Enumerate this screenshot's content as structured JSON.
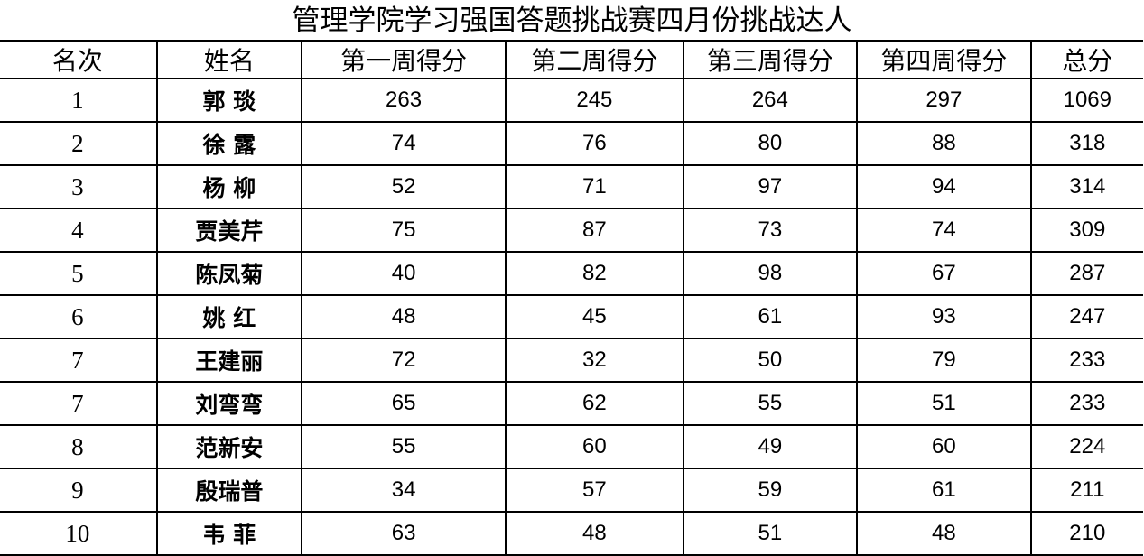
{
  "title": "管理学院学习强国答题挑战赛四月份挑战达人",
  "headers": [
    "名次",
    "姓名",
    "第一周得分",
    "第二周得分",
    "第三周得分",
    "第四周得分",
    "总分"
  ],
  "rows": [
    [
      "1",
      "郭 琰",
      "263",
      "245",
      "264",
      "297",
      "1069"
    ],
    [
      "2",
      "徐 露",
      "74",
      "76",
      "80",
      "88",
      "318"
    ],
    [
      "3",
      "杨 柳",
      "52",
      "71",
      "97",
      "94",
      "314"
    ],
    [
      "4",
      "贾美芹",
      "75",
      "87",
      "73",
      "74",
      "309"
    ],
    [
      "5",
      "陈凤菊",
      "40",
      "82",
      "98",
      "67",
      "287"
    ],
    [
      "6",
      "姚 红",
      "48",
      "45",
      "61",
      "93",
      "247"
    ],
    [
      "7",
      "王建丽",
      "72",
      "32",
      "50",
      "79",
      "233"
    ],
    [
      "7",
      "刘弯弯",
      "65",
      "62",
      "55",
      "51",
      "233"
    ],
    [
      "8",
      "范新安",
      "55",
      "60",
      "49",
      "60",
      "224"
    ],
    [
      "9",
      "殷瑞普",
      "34",
      "57",
      "59",
      "61",
      "211"
    ],
    [
      "10",
      "韦 菲",
      "63",
      "48",
      "51",
      "48",
      "210"
    ]
  ]
}
